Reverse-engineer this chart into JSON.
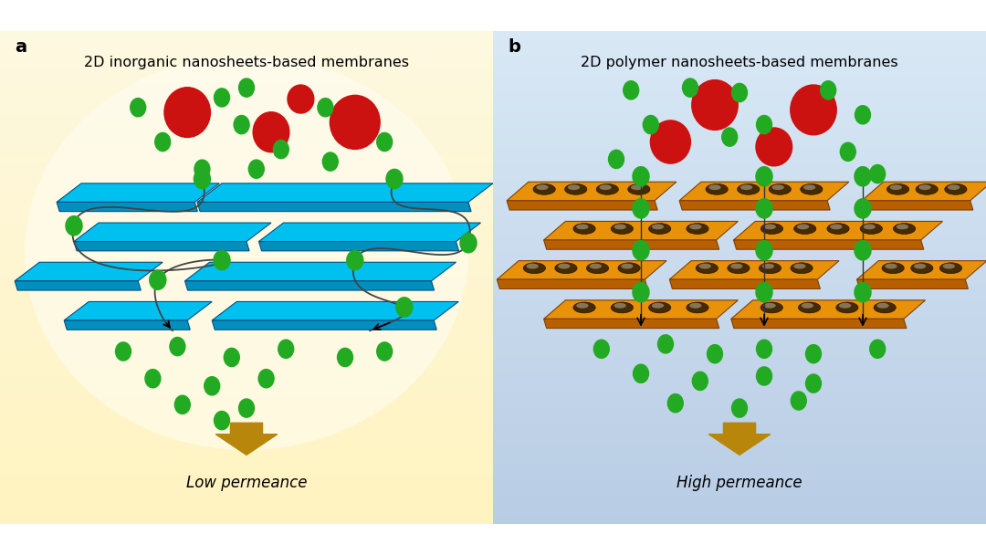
{
  "panel_a_title": "2D inorganic nanosheets-based membranes",
  "panel_b_title": "2D polymer nanosheets-based membranes",
  "label_a": "a",
  "label_b": "b",
  "low_permeance": "Low permeance",
  "high_permeance": "High permeance",
  "blue_color": "#00c0f0",
  "blue_dark": "#0090c0",
  "orange_color": "#e8920a",
  "orange_dark": "#b86000",
  "green_color": "#22aa22",
  "red_color": "#cc1111",
  "arrow_color": "#b8860b",
  "line_color": "#444444",
  "bg_a_top": "#fdf8e0",
  "bg_a_bot": "#fff3c0",
  "bg_b_top": "#d8e8f5",
  "bg_b_bot": "#b8cce4"
}
